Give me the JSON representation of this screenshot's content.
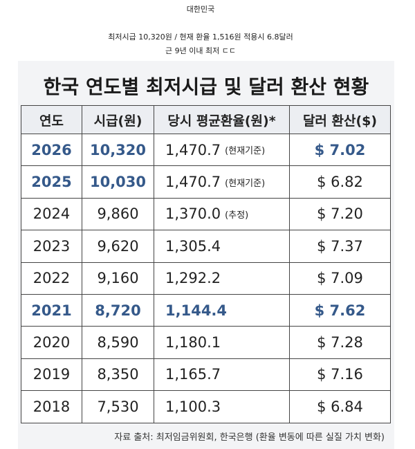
{
  "header": {
    "title": "대한민국",
    "line1": "최저시급 10,320원 / 현재 환율 1,516원 적용시 6.8달러",
    "line2": "근 9년 이내 최저 ㄷㄷ"
  },
  "image": {
    "title": "한국 연도별 최저시급 및 달러 환산 현황",
    "highlight_color": "#35598a",
    "table": {
      "columns": [
        "연도",
        "시급(원)",
        "당시 평균환율(원)*",
        "달러 환산($)"
      ],
      "rows": [
        {
          "cells": [
            "2026",
            "10,320",
            "1,470.7",
            "$ 7.02"
          ],
          "note": "(현재기준)",
          "highlight": [
            0,
            1,
            3
          ]
        },
        {
          "cells": [
            "2025",
            "10,030",
            "1,470.7",
            "$ 6.82"
          ],
          "note": "(현재기준)",
          "highlight": [
            0,
            1
          ]
        },
        {
          "cells": [
            "2024",
            "9,860",
            "1,370.0",
            "$ 7.20"
          ],
          "note": "(추정)",
          "highlight": []
        },
        {
          "cells": [
            "2023",
            "9,620",
            "1,305.4",
            "$ 7.37"
          ],
          "highlight": []
        },
        {
          "cells": [
            "2022",
            "9,160",
            "1,292.2",
            "$ 7.09"
          ],
          "highlight": []
        },
        {
          "cells": [
            "2021",
            "8,720",
            "1,144.4",
            "$ 7.62"
          ],
          "highlight": [
            0,
            1,
            2,
            3
          ]
        },
        {
          "cells": [
            "2020",
            "8,590",
            "1,180.1",
            "$ 7.28"
          ],
          "highlight": []
        },
        {
          "cells": [
            "2019",
            "8,350",
            "1,165.7",
            "$ 7.16"
          ],
          "highlight": []
        },
        {
          "cells": [
            "2018",
            "7,530",
            "1,100.3",
            "$ 6.84"
          ],
          "highlight": []
        }
      ]
    },
    "source": "자료 출처: 최저임금위원회, 한국은행 (환율 변동에 따른 실질 가치 변화)"
  }
}
